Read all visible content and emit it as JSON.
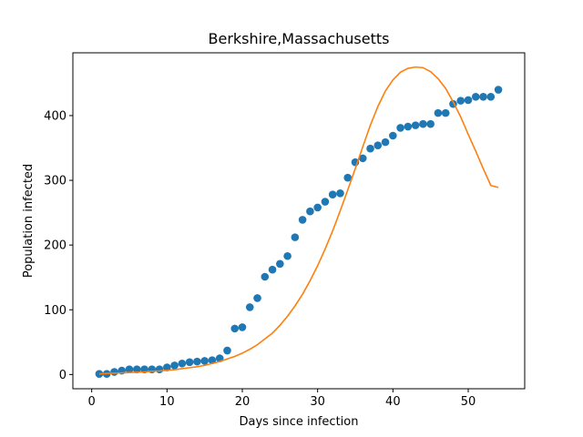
{
  "chart_data": {
    "type": "scatter",
    "title": "Berkshire,Massachusetts",
    "xlabel": "Days since infection",
    "ylabel": "Population infected",
    "xlim": [
      -2.5,
      57.5
    ],
    "ylim": [
      -22,
      497
    ],
    "xticks": [
      0,
      10,
      20,
      30,
      40,
      50
    ],
    "yticks": [
      0,
      100,
      200,
      300,
      400
    ],
    "grid": false,
    "series": [
      {
        "kind": "scatter",
        "color": "#1f77b4",
        "x": [
          1,
          2,
          3,
          4,
          5,
          6,
          7,
          8,
          9,
          10,
          11,
          12,
          13,
          14,
          15,
          16,
          17,
          18,
          19,
          20,
          21,
          22,
          23,
          24,
          25,
          26,
          27,
          28,
          29,
          30,
          31,
          32,
          33,
          34,
          35,
          36,
          37,
          38,
          39,
          40,
          41,
          42,
          43,
          44,
          45,
          46,
          47,
          48,
          49,
          50,
          51,
          52,
          53,
          54
        ],
        "y": [
          1,
          1,
          4,
          6,
          8,
          8,
          8,
          8,
          8,
          11,
          14,
          17,
          19,
          20,
          21,
          22,
          25,
          37,
          71,
          73,
          104,
          118,
          151,
          162,
          171,
          183,
          212,
          239,
          252,
          258,
          267,
          278,
          280,
          304,
          328,
          334,
          349,
          354,
          359,
          369,
          381,
          383,
          385,
          387,
          387,
          404,
          404,
          418,
          423,
          424,
          429,
          429,
          429,
          440
        ]
      },
      {
        "kind": "line",
        "color": "#ff7f0e",
        "x": [
          1,
          2,
          3,
          4,
          5,
          6,
          7,
          8,
          9,
          10,
          11,
          12,
          13,
          14,
          15,
          16,
          17,
          18,
          19,
          20,
          21,
          22,
          23,
          24,
          25,
          26,
          27,
          28,
          29,
          30,
          31,
          32,
          33,
          34,
          35,
          36,
          37,
          38,
          39,
          40,
          41,
          42,
          43,
          44,
          45,
          46,
          47,
          48,
          49,
          50,
          51,
          52,
          53,
          54
        ],
        "y": [
          1,
          1.5,
          2,
          2.5,
          3,
          3.5,
          4,
          5,
          5.5,
          6.5,
          7.5,
          9,
          10.5,
          12,
          14,
          17,
          20,
          24,
          28,
          33,
          39,
          46,
          55,
          64,
          76,
          90,
          106,
          124,
          145,
          168,
          194,
          222,
          253,
          285,
          318,
          352,
          385,
          414,
          438,
          455,
          467,
          473,
          475,
          474,
          468,
          457,
          442,
          421,
          398,
          371,
          345,
          318,
          292,
          289
        ]
      }
    ]
  }
}
